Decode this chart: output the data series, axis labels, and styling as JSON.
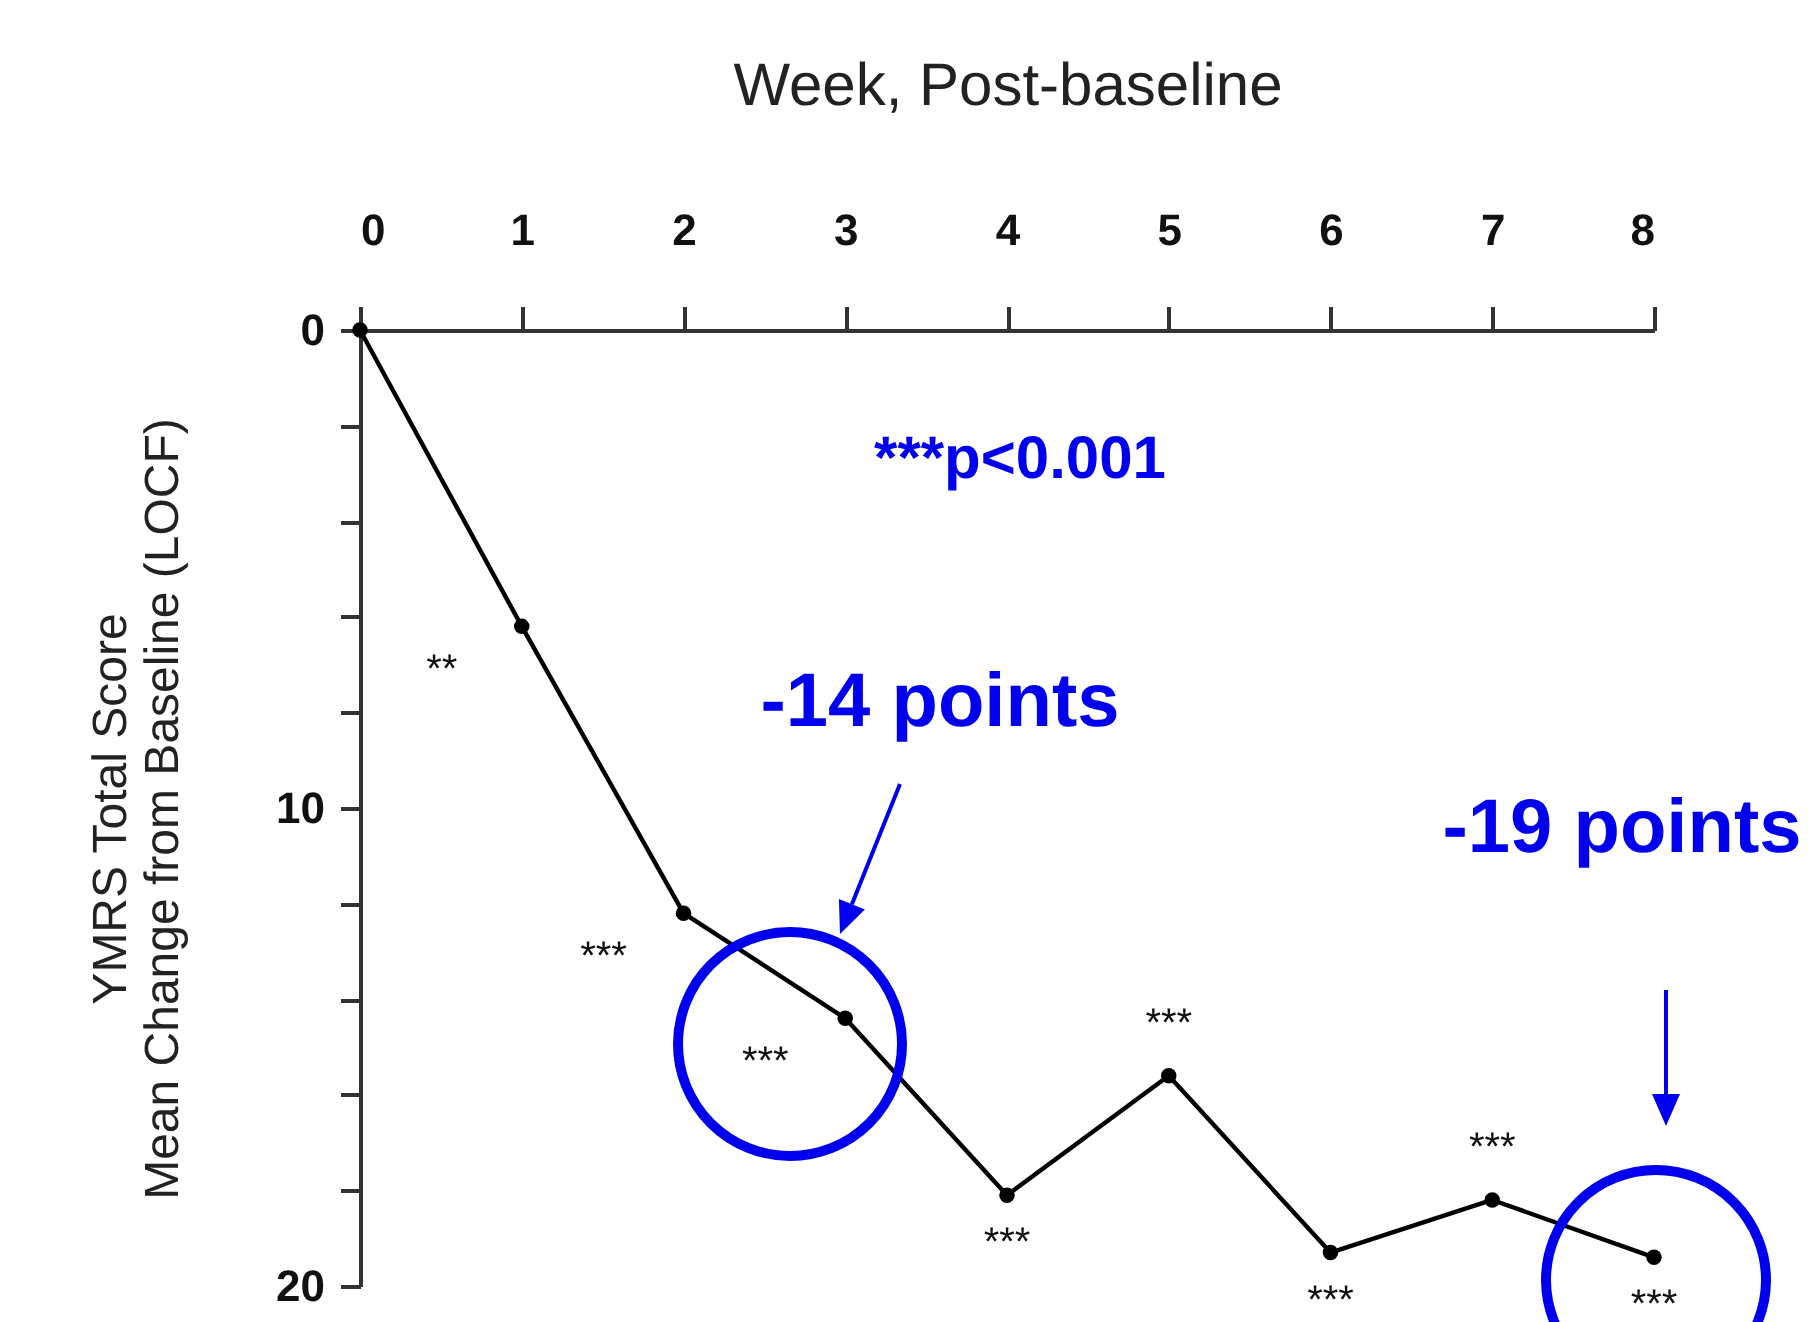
{
  "chart_data": {
    "type": "line",
    "xlabel": "Week, Post-baseline",
    "ylabel": "YMRS Total Score\nMean Change from Baseline (LOCF)",
    "x": [
      0,
      1,
      2,
      3,
      4,
      5,
      6,
      7,
      8
    ],
    "series": [
      {
        "color": "#000000",
        "values": [
          0,
          6.2,
          12.2,
          14.4,
          18.1,
          15.6,
          19.3,
          18.2,
          19.4
        ]
      }
    ],
    "xlim": [
      0,
      8
    ],
    "xticks": [
      0,
      1,
      2,
      3,
      4,
      5,
      6,
      7,
      8
    ],
    "ylim": [
      20,
      0
    ],
    "yticks": [
      0,
      {
        "value": 2,
        "label": null
      },
      {
        "value": 4,
        "label": null
      },
      {
        "value": 6,
        "label": null
      },
      {
        "value": 8,
        "label": null
      },
      10,
      {
        "value": 12,
        "label": null
      },
      {
        "value": 14,
        "label": null
      },
      {
        "value": 16,
        "label": null
      },
      {
        "value": 18,
        "label": null
      },
      20
    ],
    "grid": false,
    "marker": "circle",
    "line_style": "solid",
    "annotations": [
      "***p<0.001",
      "-14 points",
      "-19 points",
      {
        "text": "**",
        "x": 1,
        "y": 6.2
      },
      {
        "text": "***",
        "x": 2,
        "y": 12.2
      },
      {
        "text": "***",
        "x": 3,
        "y": 14.4
      },
      {
        "text": "***",
        "x": 4,
        "y": 18.1
      },
      {
        "text": "***",
        "x": 5,
        "y": 15.6
      },
      {
        "text": "***",
        "x": 6,
        "y": 19.3
      },
      {
        "text": "***",
        "x": 7,
        "y": 18.2
      },
      {
        "text": "***",
        "x": 8,
        "y": 19.4
      }
    ]
  }
}
